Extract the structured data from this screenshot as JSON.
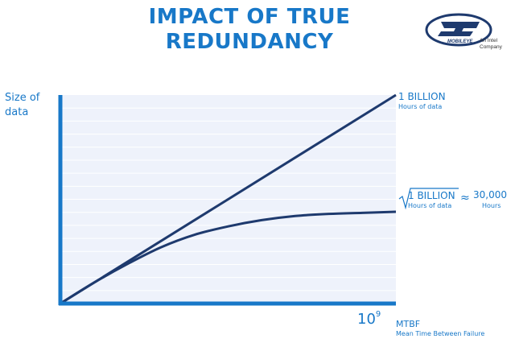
{
  "header": {
    "title_line1": "IMPACT OF TRUE",
    "title_line2": "REDUNDANCY"
  },
  "logo": {
    "brand": "MOBILEYE",
    "subtitle_line1": "An Intel",
    "subtitle_line2": "Company"
  },
  "colors": {
    "accent": "#1878c8",
    "line": "#1e3a6e",
    "plot_bg": "#eef2fb"
  },
  "chart_data": {
    "type": "line",
    "title": "IMPACT OF TRUE REDUNDANCY",
    "ylabel_line1": "Size of",
    "ylabel_line2": "data",
    "xlabel": "MTBF",
    "xlabel_sub": "Mean Time Between Failure",
    "x_tick_base": "10",
    "x_tick_exp": "9",
    "xlim": [
      0,
      1
    ],
    "ylim": [
      0,
      1
    ],
    "grid": true,
    "series": [
      {
        "name": "linear",
        "label_main": "1 BILLION",
        "label_sub": "Hours of data",
        "x": [
          0,
          1
        ],
        "y": [
          0,
          1
        ]
      },
      {
        "name": "sqrt",
        "label_main": "1 BILLION",
        "label_sub": "Hours of data",
        "approx": "≈",
        "result_main": "30,000",
        "result_sub": "Hours",
        "x": [
          0,
          0.1,
          0.2,
          0.3,
          0.4,
          0.5,
          0.6,
          0.7,
          0.8,
          0.9,
          1.0
        ],
        "y": [
          0,
          0.1,
          0.19,
          0.27,
          0.33,
          0.37,
          0.4,
          0.42,
          0.43,
          0.435,
          0.44
        ]
      }
    ]
  }
}
